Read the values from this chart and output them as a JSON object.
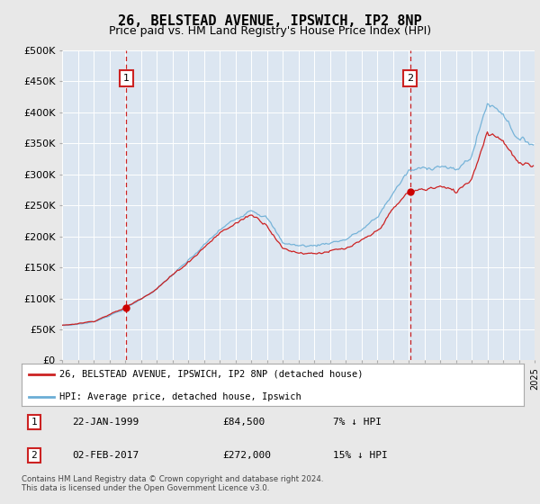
{
  "title": "26, BELSTEAD AVENUE, IPSWICH, IP2 8NP",
  "subtitle": "Price paid vs. HM Land Registry's House Price Index (HPI)",
  "title_fontsize": 11,
  "subtitle_fontsize": 9,
  "ylim": [
    0,
    500000
  ],
  "yticks": [
    0,
    50000,
    100000,
    150000,
    200000,
    250000,
    300000,
    350000,
    400000,
    450000,
    500000
  ],
  "ytick_labels": [
    "£0",
    "£50K",
    "£100K",
    "£150K",
    "£200K",
    "£250K",
    "£300K",
    "£350K",
    "£400K",
    "£450K",
    "£500K"
  ],
  "background_color": "#dce6f1",
  "plot_bg_color": "#dce6f1",
  "grid_color": "#ffffff",
  "sale1_date_label": "22-JAN-1999",
  "sale1_price": 84500,
  "sale1_price_label": "£84,500",
  "sale1_hpi_label": "7% ↓ HPI",
  "sale2_date_label": "02-FEB-2017",
  "sale2_price": 272000,
  "sale2_price_label": "£272,000",
  "sale2_hpi_label": "15% ↓ HPI",
  "red_line_label": "26, BELSTEAD AVENUE, IPSWICH, IP2 8NP (detached house)",
  "blue_line_label": "HPI: Average price, detached house, Ipswich",
  "footer": "Contains HM Land Registry data © Crown copyright and database right 2024.\nThis data is licensed under the Open Government Licence v3.0.",
  "sale1_year": 1999.08,
  "sale2_year": 2017.09
}
